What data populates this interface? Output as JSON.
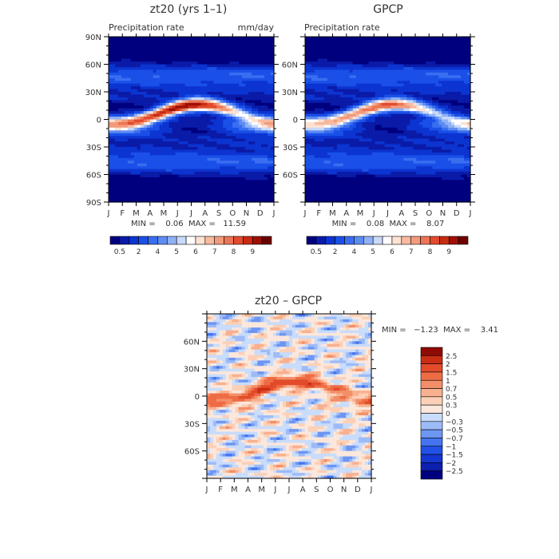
{
  "colors": {
    "seq": [
      "#00007f",
      "#0a1ba8",
      "#0c34d0",
      "#1a50e8",
      "#3a6ef0",
      "#5d8cf2",
      "#8fb1f6",
      "#c8d9fa",
      "#ffffff",
      "#fde2d2",
      "#f7b99f",
      "#f29b7c",
      "#ec7555",
      "#e24b2e",
      "#c92a14",
      "#9e1005",
      "#6f0000"
    ],
    "diff": [
      "#00007f",
      "#0c1fae",
      "#1437d2",
      "#2151e8",
      "#4474ef",
      "#6d96f3",
      "#9dbbf7",
      "#c9dcfb",
      "#fbe7dc",
      "#fcd0b6",
      "#f8b08f",
      "#f38f68",
      "#ee6c45",
      "#e24b2a",
      "#c92d13",
      "#8f0a03"
    ]
  },
  "charts": {
    "p1": {
      "title": "zt20  (yrs 1–1)",
      "subtitle": "Precipitation rate",
      "units": "mm/day",
      "minmax": "MIN =    0.06  MAX =   11.59"
    },
    "p2": {
      "title": "GPCP",
      "subtitle": "Precipitation rate",
      "units": "",
      "minmax": "MIN =    0.08  MAX =    8.07"
    },
    "p3": {
      "title": "zt20  –  GPCP",
      "minmax": "MIN =   −1.23  MAX =    3.41"
    }
  },
  "chart_data": [
    {
      "type": "heatmap",
      "title": "zt20  (yrs 1–1)",
      "subtitle": "Precipitation rate",
      "units": "mm/day",
      "x": [
        "J",
        "F",
        "M",
        "A",
        "M",
        "J",
        "J",
        "A",
        "S",
        "O",
        "N",
        "D",
        "J"
      ],
      "y_ticks": [
        "90N",
        "60N",
        "30N",
        "0",
        "30S",
        "60S",
        "90S"
      ],
      "ylim": [
        -90,
        90
      ],
      "colorbar_ticks": [
        "0.5",
        "2",
        "4",
        "5",
        "6",
        "7",
        "8",
        "9"
      ],
      "min": 0.06,
      "max": 11.59
    },
    {
      "type": "heatmap",
      "title": "GPCP",
      "subtitle": "Precipitation rate",
      "x": [
        "J",
        "F",
        "M",
        "A",
        "M",
        "J",
        "J",
        "A",
        "S",
        "O",
        "N",
        "D",
        "J"
      ],
      "y_ticks": [
        "60N",
        "30N",
        "0",
        "30S",
        "60S"
      ],
      "ylim": [
        -90,
        90
      ],
      "colorbar_ticks": [
        "0.5",
        "2",
        "4",
        "5",
        "6",
        "7",
        "8",
        "9"
      ],
      "min": 0.08,
      "max": 8.07
    },
    {
      "type": "heatmap",
      "title": "zt20  –  GPCP",
      "x": [
        "J",
        "F",
        "M",
        "A",
        "M",
        "J",
        "J",
        "A",
        "S",
        "O",
        "N",
        "D",
        "J"
      ],
      "y_ticks": [
        "60N",
        "30N",
        "0",
        "30S",
        "60S"
      ],
      "ylim": [
        -90,
        90
      ],
      "colorbar_levels": [
        "2.5",
        "2",
        "1.5",
        "1",
        "0.7",
        "0.5",
        "0.3",
        "0",
        "−0.3",
        "−0.5",
        "−0.7",
        "−1",
        "−1.5",
        "−2",
        "−2.5"
      ],
      "min": -1.23,
      "max": 3.41
    }
  ]
}
